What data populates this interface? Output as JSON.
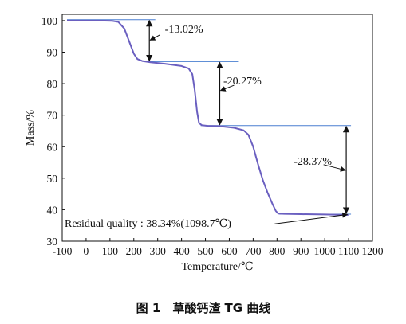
{
  "chart_data": {
    "type": "line",
    "xlabel": "Temperature/℃",
    "ylabel": "Mass/%",
    "xlim": [
      -100,
      1200
    ],
    "ylim": [
      30,
      102
    ],
    "x_ticks": [
      -100,
      0,
      100,
      200,
      300,
      400,
      500,
      600,
      700,
      800,
      900,
      1000,
      1100,
      1200
    ],
    "y_ticks": [
      30,
      40,
      50,
      60,
      70,
      80,
      90,
      100
    ],
    "grid": false,
    "series": [
      {
        "color": "#6a5fc0",
        "points": [
          [
            -80,
            100.0
          ],
          [
            60,
            100.0
          ],
          [
            110,
            99.9
          ],
          [
            135,
            99.6
          ],
          [
            160,
            97.5
          ],
          [
            180,
            93.5
          ],
          [
            200,
            89.5
          ],
          [
            215,
            87.8
          ],
          [
            235,
            87.2
          ],
          [
            270,
            86.8
          ],
          [
            330,
            86.3
          ],
          [
            400,
            85.6
          ],
          [
            430,
            84.8
          ],
          [
            445,
            83.0
          ],
          [
            455,
            78.0
          ],
          [
            465,
            71.0
          ],
          [
            473,
            67.5
          ],
          [
            485,
            66.8
          ],
          [
            510,
            66.6
          ],
          [
            560,
            66.5
          ],
          [
            620,
            66.0
          ],
          [
            660,
            65.2
          ],
          [
            680,
            63.8
          ],
          [
            700,
            60.0
          ],
          [
            720,
            54.5
          ],
          [
            740,
            49.5
          ],
          [
            760,
            45.5
          ],
          [
            780,
            42.0
          ],
          [
            795,
            39.6
          ],
          [
            805,
            38.8
          ],
          [
            830,
            38.7
          ],
          [
            900,
            38.6
          ],
          [
            1000,
            38.5
          ],
          [
            1098.7,
            38.34
          ]
        ]
      }
    ],
    "reference_lines": [
      {
        "x0": -80,
        "x1": 290,
        "y": 100.3
      },
      {
        "x0": 240,
        "x1": 640,
        "y": 87.0
      },
      {
        "x0": 480,
        "x1": 1110,
        "y": 66.7
      },
      {
        "x0": 810,
        "x1": 1110,
        "y": 38.6
      }
    ],
    "annotations": [
      {
        "text": "-13.02%",
        "arrow_x": 265,
        "y_top": 100.3,
        "y_bottom": 87.0,
        "label_x": 330,
        "label_y": 96.2,
        "pointer_from": [
          310,
          95.5
        ],
        "pointer_to": [
          268,
          93.8
        ]
      },
      {
        "text": "-20.27%",
        "arrow_x": 560,
        "y_top": 87.0,
        "y_bottom": 66.7,
        "label_x": 575,
        "label_y": 79.8,
        "pointer_from": [
          620,
          79.5
        ],
        "pointer_to": [
          563,
          77.8
        ]
      },
      {
        "text": "-28.37%",
        "arrow_x": 1090,
        "y_top": 66.7,
        "y_bottom": 38.6,
        "label_x": 870,
        "label_y": 54.3,
        "pointer_from": [
          995,
          54.3
        ],
        "pointer_to": [
          1087,
          52.5
        ]
      }
    ],
    "residual_note": {
      "text": "Residual quality : 38.34%(1098.7℃)",
      "label_x": -90,
      "label_y": 34.6,
      "pointer_from": [
        790,
        35.5
      ],
      "pointer_to": [
        1095,
        38.5
      ]
    },
    "caption": "图 1　草酸钙渣 TG 曲线"
  }
}
